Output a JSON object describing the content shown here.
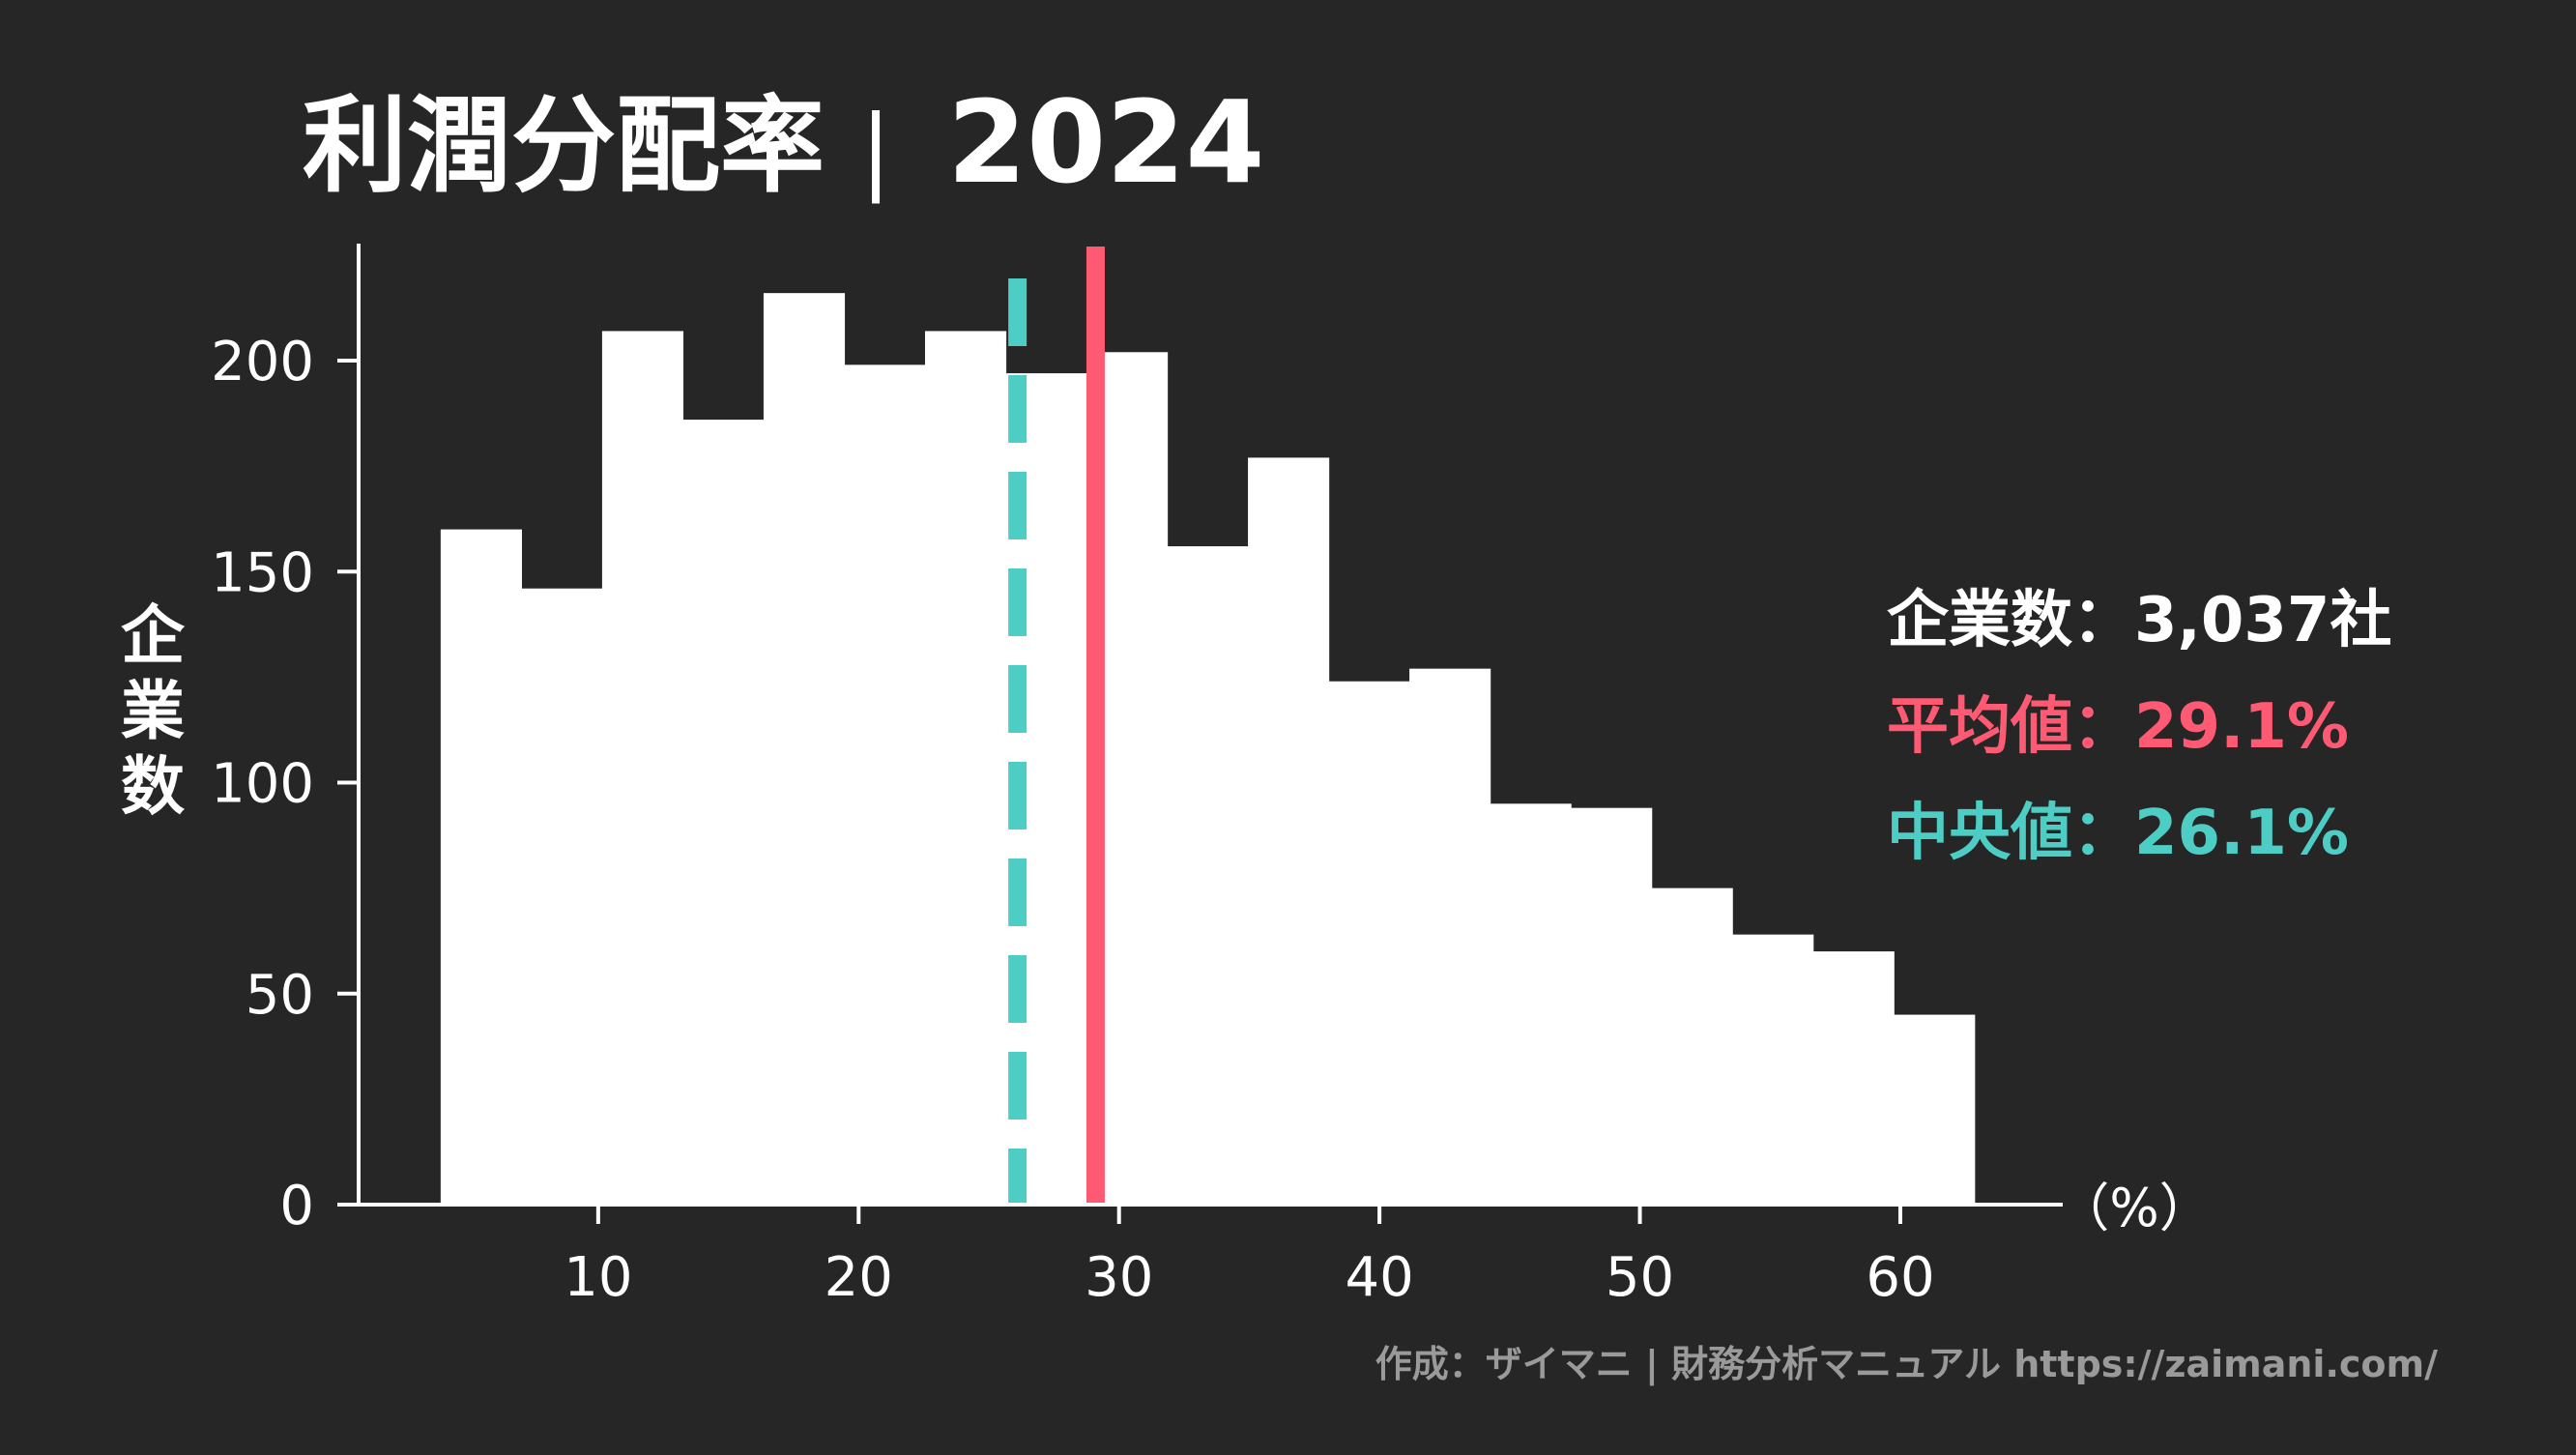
{
  "title": "利潤分配率",
  "title_separator": "|",
  "year": "2024",
  "ylabel": "企業数",
  "xunit": "（%）",
  "stats": {
    "count_label": "企業数：",
    "count_value": "3,037社",
    "mean_label": "平均値：",
    "mean_value": "29.1%",
    "median_label": "中央値：",
    "median_value": "26.1%"
  },
  "credit": "作成：ザイマニ | 財務分析マニュアル https://zaimani.com/",
  "colors": {
    "background": "#262626",
    "bar": "#ffffff",
    "axis": "#ffffff",
    "text": "#ffffff",
    "mean": "#ff5a73",
    "median": "#4ecdc4",
    "credit": "#9a9a9a"
  },
  "chart_data": {
    "type": "bar",
    "bin_edges": [
      3.95,
      7.05,
      10.15,
      13.25,
      16.35,
      19.45,
      22.55,
      25.65,
      28.75,
      31.85,
      34.95,
      38.05,
      41.15,
      44.25,
      47.35,
      50.45,
      53.55,
      56.65,
      59.75,
      62.85
    ],
    "values": [
      160,
      146,
      207,
      186,
      216,
      199,
      207,
      197,
      202,
      156,
      177,
      124,
      127,
      95,
      94,
      75,
      64,
      60,
      45
    ],
    "xticks": [
      10,
      20,
      30,
      40,
      50,
      60
    ],
    "yticks": [
      0,
      50,
      100,
      150,
      200
    ],
    "xlim": [
      0.8,
      66.2
    ],
    "ylim": [
      0,
      227
    ],
    "mean": 29.1,
    "median": 26.1,
    "grid": false
  }
}
